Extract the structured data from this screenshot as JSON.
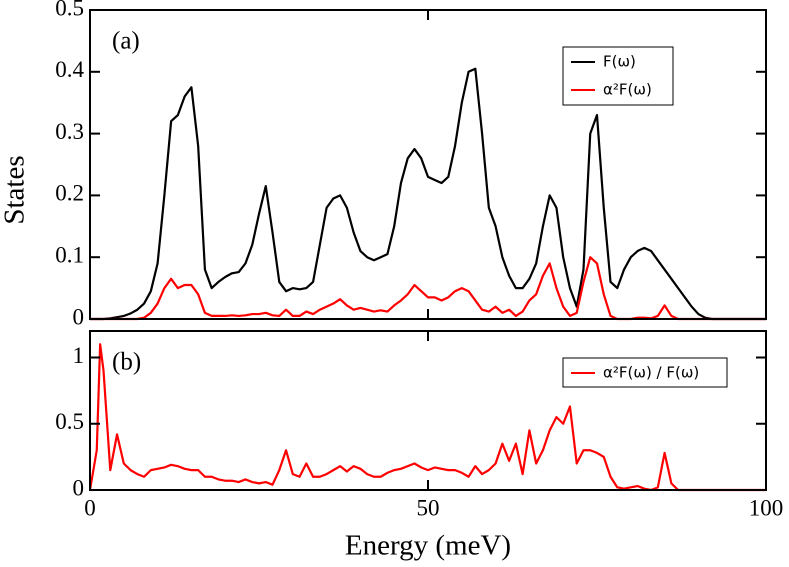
{
  "chart_data": [
    {
      "type": "line",
      "annotation": "(a)",
      "ylabel": "States",
      "x": [
        0,
        1,
        2,
        3,
        4,
        5,
        6,
        7,
        8,
        9,
        10,
        11,
        12,
        13,
        14,
        15,
        16,
        17,
        18,
        19,
        20,
        21,
        22,
        23,
        24,
        25,
        26,
        27,
        28,
        29,
        30,
        31,
        32,
        33,
        34,
        35,
        36,
        37,
        38,
        39,
        40,
        41,
        42,
        43,
        44,
        45,
        46,
        47,
        48,
        49,
        50,
        51,
        52,
        53,
        54,
        55,
        56,
        57,
        58,
        59,
        60,
        61,
        62,
        63,
        64,
        65,
        66,
        67,
        68,
        69,
        70,
        71,
        72,
        73,
        74,
        75,
        76,
        77,
        78,
        79,
        80,
        81,
        82,
        83,
        84,
        85,
        86,
        87,
        88,
        89,
        90,
        91,
        92,
        93,
        94,
        95,
        96,
        97,
        98,
        99,
        100
      ],
      "series": [
        {
          "name": "F(ω)",
          "color": "#000000",
          "values": [
            0,
            0,
            0,
            0.001,
            0.003,
            0.005,
            0.009,
            0.015,
            0.025,
            0.045,
            0.09,
            0.2,
            0.32,
            0.33,
            0.36,
            0.375,
            0.28,
            0.08,
            0.05,
            0.06,
            0.068,
            0.074,
            0.076,
            0.09,
            0.12,
            0.17,
            0.215,
            0.14,
            0.06,
            0.045,
            0.05,
            0.048,
            0.05,
            0.06,
            0.12,
            0.18,
            0.195,
            0.2,
            0.18,
            0.14,
            0.11,
            0.1,
            0.095,
            0.1,
            0.105,
            0.15,
            0.22,
            0.26,
            0.275,
            0.26,
            0.23,
            0.225,
            0.22,
            0.23,
            0.28,
            0.35,
            0.4,
            0.405,
            0.3,
            0.18,
            0.15,
            0.1,
            0.07,
            0.05,
            0.05,
            0.065,
            0.09,
            0.15,
            0.2,
            0.18,
            0.1,
            0.05,
            0.02,
            0.08,
            0.3,
            0.33,
            0.18,
            0.06,
            0.05,
            0.08,
            0.1,
            0.11,
            0.115,
            0.11,
            0.095,
            0.08,
            0.065,
            0.05,
            0.035,
            0.02,
            0.008,
            0.002,
            0,
            0,
            0,
            0,
            0,
            0,
            0,
            0,
            0
          ]
        },
        {
          "name": "α²F(ω)",
          "color": "#ff0000",
          "values": [
            0,
            0,
            0,
            0,
            0,
            0,
            0,
            0,
            0.002,
            0.01,
            0.025,
            0.05,
            0.065,
            0.05,
            0.055,
            0.055,
            0.04,
            0.01,
            0.005,
            0.005,
            0.005,
            0.006,
            0.005,
            0.006,
            0.008,
            0.008,
            0.01,
            0.006,
            0.005,
            0.015,
            0.005,
            0.005,
            0.012,
            0.008,
            0.015,
            0.02,
            0.025,
            0.032,
            0.022,
            0.015,
            0.018,
            0.015,
            0.012,
            0.014,
            0.012,
            0.022,
            0.03,
            0.04,
            0.055,
            0.045,
            0.035,
            0.035,
            0.03,
            0.035,
            0.045,
            0.05,
            0.045,
            0.03,
            0.015,
            0.012,
            0.02,
            0.01,
            0.015,
            0.005,
            0.012,
            0.03,
            0.04,
            0.07,
            0.09,
            0.05,
            0.02,
            0.005,
            0.01,
            0.06,
            0.1,
            0.09,
            0.04,
            0.005,
            0,
            0,
            0,
            0.002,
            0.002,
            0.001,
            0.005,
            0.022,
            0.005,
            0,
            0,
            0,
            0,
            0,
            0,
            0,
            0,
            0,
            0,
            0,
            0,
            0,
            0
          ]
        }
      ],
      "xlim": [
        0,
        100
      ],
      "xticks": [
        0,
        50,
        100
      ],
      "ylim": [
        0,
        0.5
      ],
      "yticks": [
        0,
        0.1,
        0.2,
        0.3,
        0.4,
        0.5
      ]
    },
    {
      "type": "line",
      "annotation": "(b)",
      "xlabel": "Energy (meV)",
      "x": [
        0,
        1,
        1.5,
        2,
        3,
        4,
        5,
        6,
        7,
        8,
        9,
        10,
        11,
        12,
        13,
        14,
        15,
        16,
        17,
        18,
        19,
        20,
        21,
        22,
        23,
        24,
        25,
        26,
        27,
        28,
        29,
        30,
        31,
        32,
        33,
        34,
        35,
        36,
        37,
        38,
        39,
        40,
        41,
        42,
        43,
        44,
        45,
        46,
        47,
        48,
        49,
        50,
        51,
        52,
        53,
        54,
        55,
        56,
        57,
        58,
        59,
        60,
        61,
        62,
        63,
        64,
        65,
        66,
        67,
        68,
        69,
        70,
        71,
        72,
        73,
        74,
        75,
        76,
        77,
        78,
        79,
        80,
        81,
        82,
        83,
        84,
        85,
        86,
        87,
        88,
        89,
        90,
        91,
        92,
        93,
        94,
        95,
        96,
        97,
        98,
        99,
        100
      ],
      "series": [
        {
          "name": "α²F(ω) / F(ω)",
          "color": "#ff0000",
          "values": [
            0,
            0.3,
            1.1,
            0.9,
            0.15,
            0.42,
            0.2,
            0.15,
            0.12,
            0.1,
            0.15,
            0.16,
            0.17,
            0.19,
            0.18,
            0.16,
            0.15,
            0.15,
            0.1,
            0.1,
            0.08,
            0.07,
            0.07,
            0.06,
            0.08,
            0.06,
            0.05,
            0.06,
            0.04,
            0.15,
            0.3,
            0.12,
            0.1,
            0.2,
            0.1,
            0.1,
            0.12,
            0.15,
            0.18,
            0.14,
            0.18,
            0.16,
            0.12,
            0.1,
            0.1,
            0.13,
            0.15,
            0.16,
            0.18,
            0.2,
            0.17,
            0.15,
            0.17,
            0.16,
            0.15,
            0.15,
            0.13,
            0.1,
            0.18,
            0.12,
            0.15,
            0.2,
            0.35,
            0.22,
            0.35,
            0.12,
            0.45,
            0.2,
            0.3,
            0.45,
            0.55,
            0.5,
            0.63,
            0.2,
            0.3,
            0.3,
            0.28,
            0.25,
            0.1,
            0.02,
            0.01,
            0.02,
            0.03,
            0.01,
            0,
            0.02,
            0.28,
            0.05,
            0,
            0,
            0,
            0,
            0,
            0,
            0,
            0,
            0,
            0,
            0,
            0,
            0,
            0
          ]
        }
      ],
      "xlim": [
        0,
        100
      ],
      "xticks": [
        0,
        50,
        100
      ],
      "ylim": [
        0,
        1.2
      ],
      "yticks": [
        0,
        0.5,
        1
      ]
    }
  ]
}
